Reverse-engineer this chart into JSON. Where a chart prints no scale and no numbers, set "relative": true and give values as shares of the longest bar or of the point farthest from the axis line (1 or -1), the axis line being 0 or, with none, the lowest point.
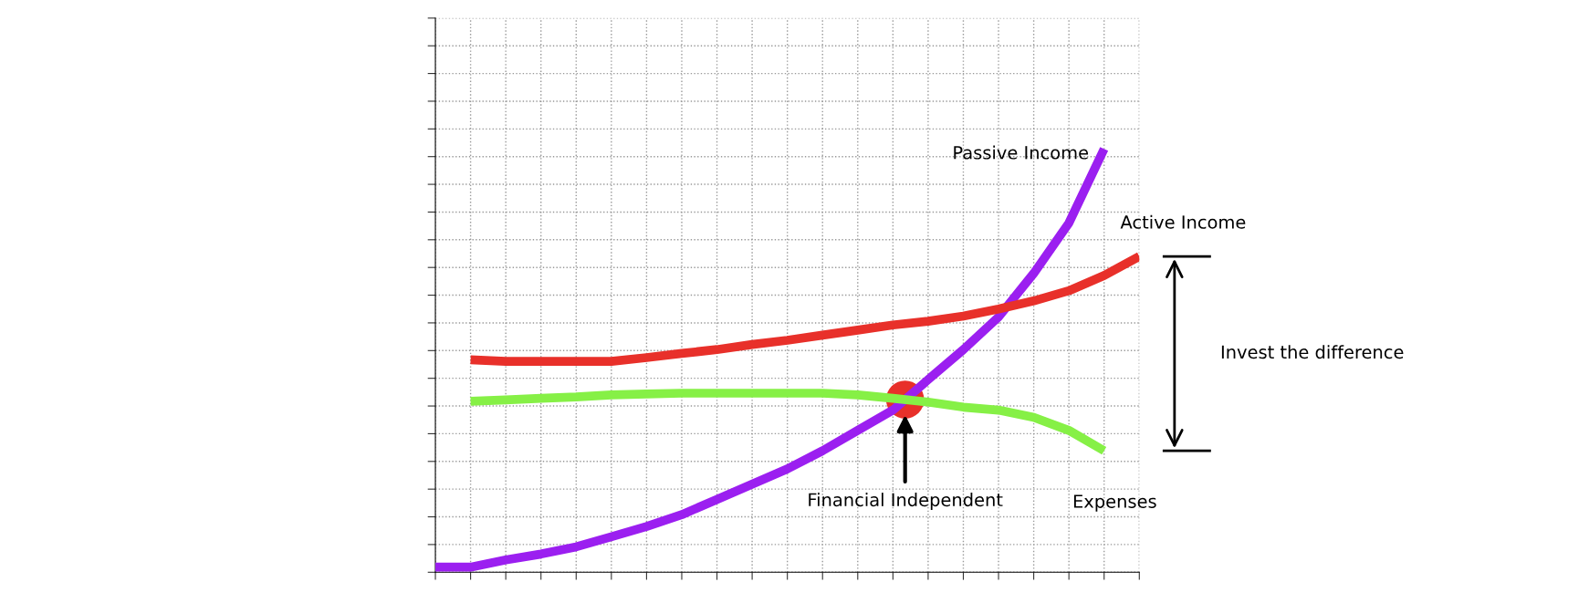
{
  "chart_data": {
    "type": "line",
    "relative": true,
    "grid": true,
    "legend": false,
    "marker": "none",
    "line_style": "solid",
    "categories": [
      null,
      null,
      null,
      null,
      null,
      null,
      null,
      null,
      null,
      null,
      null,
      null,
      null,
      null,
      null,
      null,
      null,
      null,
      null,
      null,
      null
    ],
    "series": [
      {
        "name": "Passive Income",
        "color": "#9b1ff0",
        "values": [
          0.012,
          0.012,
          0.029,
          0.043,
          0.06,
          0.084,
          0.108,
          0.136,
          0.172,
          0.208,
          0.244,
          0.287,
          0.335,
          0.383,
          0.455,
          0.526,
          0.603,
          0.706,
          0.825,
          1.0,
          null
        ]
      },
      {
        "name": "Active Income",
        "color": "#e8302a",
        "values": [
          null,
          0.502,
          0.498,
          0.498,
          0.498,
          0.498,
          0.507,
          0.517,
          0.526,
          0.538,
          0.548,
          0.56,
          0.572,
          0.584,
          0.593,
          0.605,
          0.622,
          0.641,
          0.665,
          0.701,
          0.746
        ]
      },
      {
        "name": "Expenses",
        "color": "#86f046",
        "values": [
          null,
          0.404,
          0.407,
          0.411,
          0.414,
          0.419,
          0.421,
          0.423,
          0.423,
          0.423,
          0.423,
          0.423,
          0.419,
          0.411,
          0.402,
          0.39,
          0.383,
          0.366,
          0.335,
          0.287,
          null
        ]
      }
    ],
    "annotations": [
      "Financial Independent",
      "Invest the difference"
    ]
  }
}
